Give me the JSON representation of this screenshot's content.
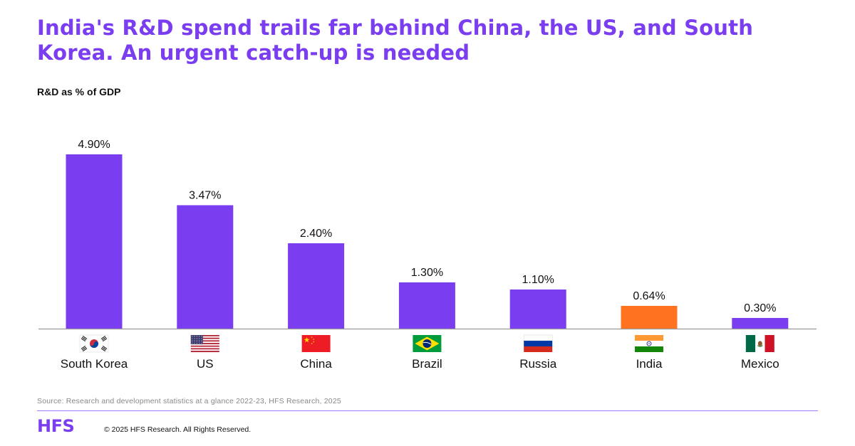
{
  "header": {
    "title": "India's R&D spend trails far behind China, the US, and South Korea. An urgent catch-up is needed",
    "subtitle": "R&D as % of GDP"
  },
  "chart_data": {
    "type": "bar",
    "ylabel": "R&D as % of GDP",
    "categories": [
      "South Korea",
      "US",
      "China",
      "Brazil",
      "Russia",
      "India",
      "Mexico"
    ],
    "values": [
      4.9,
      3.47,
      2.4,
      1.3,
      1.1,
      0.64,
      0.3
    ],
    "data_labels": [
      "4.90%",
      "3.47%",
      "2.40%",
      "1.30%",
      "1.10%",
      "0.64%",
      "0.30%"
    ],
    "flags": [
      "south-korea-flag-icon",
      "us-flag-icon",
      "china-flag-icon",
      "brazil-flag-icon",
      "russia-flag-icon",
      "india-flag-icon",
      "mexico-flag-icon"
    ],
    "colors": [
      "#7a3df0",
      "#7a3df0",
      "#7a3df0",
      "#7a3df0",
      "#7a3df0",
      "#ff7320",
      "#7a3df0"
    ],
    "ylim": [
      0,
      4.9
    ],
    "grid": false,
    "legend": "none"
  },
  "footer": {
    "source": "Source: Research and development statistics at a glance 2022-23, HFS Research, 2025",
    "logo": "HFS",
    "copyright": "© 2025 HFS Research. All Rights Reserved."
  }
}
